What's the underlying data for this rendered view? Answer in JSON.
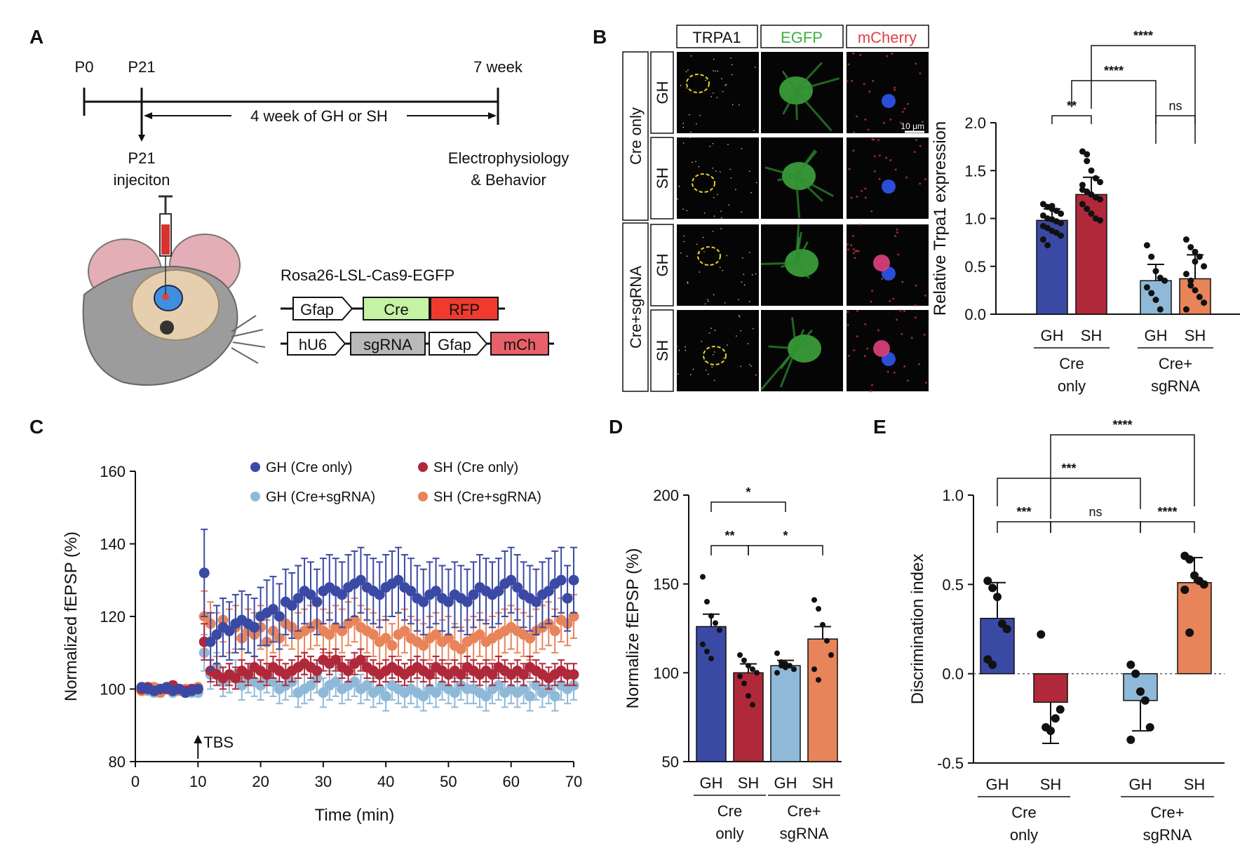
{
  "panels": {
    "A": "A",
    "B": "B",
    "C": "C",
    "D": "D",
    "E": "E"
  },
  "timeline": {
    "p0": "P0",
    "p21": "P21",
    "week7": "7 week",
    "span_label": "4 week of GH or SH",
    "injection": [
      "P21",
      "injeciton"
    ],
    "endpoint": [
      "Electrophysiology",
      "& Behavior"
    ]
  },
  "constructs": {
    "title": "Rosa26-LSL-Cas9-EGFP",
    "row1": [
      "Gfap",
      "Cre",
      "RFP"
    ],
    "row2": [
      "hU6",
      "sgRNA",
      "Gfap",
      "mCh"
    ]
  },
  "imaging": {
    "channels": [
      "TRPA1",
      "EGFP",
      "mCherry"
    ],
    "groups": [
      "Cre only",
      "Cre+sgRNA"
    ],
    "rows": [
      "GH",
      "SH",
      "GH",
      "SH"
    ],
    "scale_bar": "10 μm"
  },
  "colors": {
    "gh_cre": "#3a4aa4",
    "sh_cre": "#b0293a",
    "gh_sg": "#8fb9d8",
    "sh_sg": "#e8845a",
    "egfp": "#3fae3f",
    "mcherry": "#e0404a"
  },
  "chart_data": [
    {
      "id": "B",
      "type": "bar",
      "ylabel": "Relative Trpa1 expression",
      "ylim": [
        0,
        2.0
      ],
      "yticks": [
        "0.0",
        "0.5",
        "1.0",
        "1.5",
        "2.0"
      ],
      "categories": [
        "GH",
        "SH",
        "GH",
        "SH"
      ],
      "groups": [
        "Cre\nonly",
        "Cre+\nsgRNA"
      ],
      "values": [
        0.98,
        1.25,
        0.35,
        0.37
      ],
      "errors": [
        0.12,
        0.18,
        0.17,
        0.25
      ],
      "points": [
        [
          1.15,
          1.12,
          1.1,
          1.08,
          1.05,
          1.03,
          1.0,
          0.99,
          0.97,
          0.95,
          0.92,
          0.9,
          0.87,
          0.85,
          0.82,
          0.78,
          0.72,
          1.13
        ],
        [
          1.7,
          1.67,
          1.5,
          1.42,
          1.38,
          1.3,
          1.28,
          1.25,
          1.22,
          1.2,
          1.15,
          1.1,
          1.05,
          1.0,
          0.98,
          1.35,
          1.6
        ],
        [
          0.72,
          0.6,
          0.45,
          0.38,
          0.35,
          0.28,
          0.22,
          0.15,
          0.05
        ],
        [
          0.78,
          0.7,
          0.65,
          0.6,
          0.5,
          0.42,
          0.35,
          0.25,
          0.18,
          0.12,
          0.05,
          0.3,
          0.55
        ]
      ],
      "sig": [
        {
          "a": 0,
          "b": 1,
          "label": "**"
        },
        {
          "a": 2,
          "b": 3,
          "label": "ns"
        },
        {
          "a": 0.5,
          "b": 2,
          "label": "****"
        },
        {
          "a": 1,
          "b": 3,
          "label": "****"
        }
      ]
    },
    {
      "id": "C",
      "type": "line",
      "xlabel": "Time (min)",
      "ylabel": "Normalized fEPSP (%)",
      "xlim": [
        0,
        70
      ],
      "ylim": [
        80,
        160
      ],
      "xticks": [
        "0",
        "10",
        "20",
        "30",
        "40",
        "50",
        "60",
        "70"
      ],
      "yticks": [
        "80",
        "100",
        "120",
        "140",
        "160"
      ],
      "annotation": "TBS",
      "annotation_x": 10,
      "series": [
        {
          "name": "GH (Cre only)",
          "color": "#3a4aa4",
          "values": [
            100.5,
            100,
            99.5,
            100,
            100.5,
            99.5,
            100,
            99,
            99.5,
            100,
            132,
            113,
            115,
            117,
            116,
            118,
            119,
            118,
            117,
            120,
            121,
            122,
            120,
            124,
            123,
            125,
            127,
            126,
            124,
            127,
            128,
            127,
            126,
            128,
            129,
            130,
            128,
            127,
            126,
            128,
            129,
            130,
            128,
            127,
            125,
            124,
            126,
            127,
            125,
            124,
            126,
            125,
            124,
            126,
            128,
            127,
            126,
            127,
            129,
            130,
            128,
            126,
            125,
            124,
            126,
            127,
            129,
            130,
            125,
            130
          ],
          "errors": [
            1,
            1,
            1,
            1,
            1,
            1,
            1,
            1,
            1,
            1,
            12,
            8,
            8,
            8,
            8,
            8,
            8,
            8,
            8,
            8,
            9,
            9,
            9,
            9,
            9,
            9,
            9,
            9,
            9,
            9,
            9,
            9,
            9,
            9,
            9,
            9,
            9,
            9,
            9,
            9,
            9,
            9,
            9,
            9,
            9,
            9,
            9,
            9,
            9,
            9,
            9,
            9,
            9,
            9,
            9,
            9,
            9,
            9,
            9,
            9,
            9,
            9,
            9,
            9,
            9,
            9,
            9,
            9,
            9,
            9
          ]
        },
        {
          "name": "SH (Cre only)",
          "color": "#b0293a",
          "values": [
            100,
            100.5,
            99.5,
            100,
            100,
            101,
            100,
            99.5,
            100,
            100,
            113,
            105,
            104,
            103,
            104,
            103,
            105,
            104,
            106,
            105,
            104,
            106,
            105,
            104,
            105,
            106,
            107,
            106,
            105,
            108,
            107,
            108,
            106,
            105,
            107,
            108,
            106,
            105,
            104,
            105,
            106,
            105,
            104,
            105,
            106,
            105,
            104,
            106,
            105,
            104,
            105,
            104,
            106,
            105,
            104,
            105,
            104,
            106,
            105,
            104,
            105,
            104,
            106,
            105,
            104,
            103,
            104,
            105,
            104,
            104
          ],
          "errors": [
            1,
            1,
            1,
            1,
            1,
            1,
            1,
            1,
            1,
            1,
            5,
            3,
            3,
            3,
            3,
            3,
            3,
            3,
            3,
            3,
            3,
            3,
            3,
            3,
            3,
            3,
            3,
            3,
            3,
            3,
            3,
            3,
            3,
            3,
            3,
            3,
            3,
            3,
            3,
            3,
            3,
            3,
            3,
            3,
            3,
            3,
            3,
            3,
            3,
            3,
            3,
            3,
            3,
            3,
            3,
            3,
            3,
            3,
            3,
            3,
            3,
            3,
            3,
            3,
            3,
            3,
            3,
            3,
            3,
            3
          ]
        },
        {
          "name": "GH (Cre+sgRNA)",
          "color": "#8fb9d8",
          "values": [
            100,
            99.5,
            99,
            99.5,
            100,
            99,
            100,
            99,
            99,
            99,
            110,
            104,
            106,
            102,
            103,
            104,
            101,
            103,
            102,
            101,
            103,
            102,
            100,
            101,
            102,
            99,
            100,
            101,
            103,
            99,
            101,
            102,
            100,
            101,
            102,
            100,
            101,
            99,
            100,
            98,
            101,
            100,
            99,
            100,
            99,
            98,
            100,
            99,
            101,
            100,
            99,
            101,
            100,
            100,
            99,
            98,
            100,
            101,
            99,
            100,
            99,
            100,
            98,
            101,
            99,
            100,
            98,
            101,
            100,
            101
          ],
          "errors": [
            1,
            1,
            1,
            1,
            1,
            1,
            1,
            1,
            1,
            1,
            5,
            4,
            4,
            4,
            4,
            4,
            4,
            4,
            4,
            4,
            4,
            4,
            4,
            4,
            4,
            4,
            4,
            4,
            4,
            4,
            4,
            4,
            4,
            4,
            4,
            4,
            4,
            4,
            4,
            4,
            4,
            4,
            4,
            4,
            4,
            4,
            4,
            4,
            4,
            4,
            4,
            4,
            4,
            4,
            4,
            4,
            4,
            4,
            4,
            4,
            4,
            4,
            4,
            4,
            4,
            4,
            4,
            4,
            4,
            4
          ]
        },
        {
          "name": "SH (Cre+sgRNA)",
          "color": "#e8845a",
          "values": [
            99.5,
            100,
            100.5,
            99,
            100,
            101,
            99.5,
            100,
            100,
            100.5,
            120,
            118,
            115,
            119,
            116,
            117,
            114,
            116,
            115,
            117,
            113,
            116,
            114,
            118,
            117,
            115,
            116,
            117,
            118,
            116,
            115,
            117,
            116,
            118,
            119,
            117,
            116,
            115,
            113,
            114,
            112,
            115,
            116,
            114,
            113,
            112,
            114,
            115,
            113,
            114,
            112,
            111,
            113,
            114,
            115,
            113,
            114,
            115,
            116,
            117,
            116,
            115,
            114,
            116,
            117,
            118,
            116,
            119,
            118,
            120
          ],
          "errors": [
            1,
            1,
            1,
            1,
            1,
            1,
            1,
            1,
            1,
            1,
            7,
            6,
            6,
            6,
            6,
            6,
            6,
            6,
            6,
            6,
            6,
            6,
            6,
            6,
            6,
            6,
            6,
            6,
            6,
            6,
            6,
            6,
            6,
            6,
            6,
            6,
            6,
            6,
            6,
            6,
            6,
            6,
            6,
            6,
            6,
            6,
            6,
            6,
            6,
            6,
            6,
            6,
            6,
            6,
            6,
            6,
            6,
            6,
            6,
            6,
            6,
            6,
            6,
            6,
            6,
            6,
            6,
            6,
            6,
            6
          ]
        }
      ]
    },
    {
      "id": "D",
      "type": "bar",
      "ylabel": "Normalize fEPSP (%)",
      "ylim": [
        50,
        200
      ],
      "yticks": [
        "50",
        "100",
        "150",
        "200"
      ],
      "categories": [
        "GH",
        "SH",
        "GH",
        "SH"
      ],
      "groups": [
        "Cre\nonly",
        "Cre+\nsgRNA"
      ],
      "values": [
        126,
        100,
        104,
        119
      ],
      "errors": [
        7,
        5,
        3,
        7
      ],
      "points": [
        [
          154,
          140,
          132,
          128,
          124,
          116,
          112,
          108
        ],
        [
          110,
          107,
          104,
          102,
          100,
          98,
          94,
          87,
          82
        ],
        [
          111,
          106,
          105,
          104,
          102,
          100,
          104,
          103
        ],
        [
          141,
          136,
          127,
          118,
          110,
          102,
          96
        ]
      ],
      "sig": [
        {
          "a": 0,
          "b": 1,
          "label": "**"
        },
        {
          "a": 1,
          "b": 3,
          "label": "*"
        },
        {
          "a": 0,
          "b": 2,
          "label": "*"
        }
      ]
    },
    {
      "id": "E",
      "type": "bar",
      "ylabel": "Discrimination index",
      "ylim": [
        -0.5,
        1.0
      ],
      "yticks": [
        "-0.5",
        "0.0",
        "0.5",
        "1.0"
      ],
      "categories": [
        "GH",
        "SH",
        "GH",
        "SH"
      ],
      "groups": [
        "Cre\nonly",
        "Cre+\nsgRNA"
      ],
      "values": [
        0.31,
        -0.16,
        -0.15,
        0.51
      ],
      "errors": [
        0.2,
        0.23,
        0.17,
        0.14
      ],
      "points": [
        [
          0.52,
          0.48,
          0.43,
          0.28,
          0.25,
          0.08,
          0.05
        ],
        [
          0.22,
          -0.3,
          -0.32,
          -0.25,
          -0.2
        ],
        [
          0.05,
          0.0,
          -0.1,
          -0.15,
          -0.3,
          -0.37
        ],
        [
          0.66,
          0.64,
          0.55,
          0.52,
          0.5,
          0.47,
          0.23
        ]
      ],
      "sig": [
        {
          "a": 0,
          "b": 1,
          "label": "***"
        },
        {
          "a": 1,
          "b": 2,
          "label": "ns"
        },
        {
          "a": 2,
          "b": 3,
          "label": "****"
        },
        {
          "a": 0,
          "b": 2,
          "label": "***"
        },
        {
          "a": 1,
          "b": 3,
          "label": "****"
        }
      ]
    }
  ]
}
